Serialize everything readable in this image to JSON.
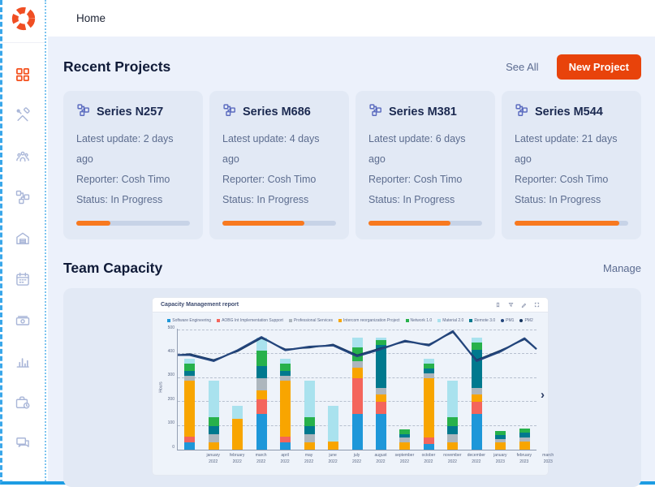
{
  "colors": {
    "accent": "#e8430b",
    "progress_fill": "#f8791f",
    "frame_blue": "#1d9ce3",
    "sidebar_inactive": "#a9b6d8",
    "sidebar_active": "#f4511e"
  },
  "topbar": {
    "title": "Home"
  },
  "sidebar": {
    "items": [
      {
        "name": "dashboard",
        "active": true
      },
      {
        "name": "tools",
        "active": false
      },
      {
        "name": "team",
        "active": false
      },
      {
        "name": "projects",
        "active": false
      },
      {
        "name": "home",
        "active": false
      },
      {
        "name": "calendar",
        "active": false
      },
      {
        "name": "payments",
        "active": false
      },
      {
        "name": "reports",
        "active": false
      },
      {
        "name": "portfolio",
        "active": false
      },
      {
        "name": "messages",
        "active": false
      }
    ]
  },
  "recent_projects": {
    "heading": "Recent Projects",
    "see_all_label": "See All",
    "new_project_label": "New Project",
    "cards": [
      {
        "title": "Series N257",
        "latest_update": "Latest update: 2 days ago",
        "reporter": "Reporter: Cosh Timo",
        "status": "Status: In Progress",
        "progress_pct": 30
      },
      {
        "title": "Series M686",
        "latest_update": "Latest update: 4 days ago",
        "reporter": "Reporter: Cosh Timo",
        "status": "Status: In Progress",
        "progress_pct": 72
      },
      {
        "title": "Series M381",
        "latest_update": "Latest update: 6 days ago",
        "reporter": "Reporter: Cosh Timo",
        "status": "Status: In Progress",
        "progress_pct": 72
      },
      {
        "title": "Series M544",
        "latest_update": "Latest update: 21 days ago",
        "reporter": "Reporter: Cosh Timo",
        "status": "Status: In Progress",
        "progress_pct": 92
      }
    ]
  },
  "team_capacity": {
    "heading": "Team Capacity",
    "manage_label": "Manage",
    "next_arrow": "›"
  },
  "chart_data": {
    "type": "bar",
    "stacked": true,
    "overlay": "line",
    "title": "Capacity Management report",
    "ylabel": "Hours",
    "ylim": [
      0,
      500
    ],
    "yticks": [
      0,
      100,
      200,
      300,
      400,
      500
    ],
    "grid": true,
    "legend_position": "top",
    "toolbar_icons": [
      "bookmark",
      "filter",
      "edit",
      "expand"
    ],
    "categories": [
      "january 2022",
      "february 2022",
      "march 2022",
      "april 2022",
      "may 2022",
      "june 2022",
      "july 2022",
      "august 2022",
      "september 2022",
      "october 2022",
      "november 2022",
      "december 2022",
      "january 2023",
      "february 2023",
      "march 2023"
    ],
    "series": [
      {
        "name": "Software Engineering",
        "color": "#1e97d9",
        "values": [
          30,
          0,
          0,
          150,
          30,
          0,
          0,
          150,
          150,
          0,
          25,
          0,
          150,
          0,
          0
        ]
      },
      {
        "name": "AOBG Int Implementation Support",
        "color": "#f4655c",
        "values": [
          25,
          0,
          0,
          60,
          25,
          0,
          0,
          150,
          50,
          0,
          25,
          0,
          50,
          0,
          0
        ]
      },
      {
        "name": "Intercom reorganization Project",
        "color": "#f8a500",
        "values": [
          235,
          30,
          130,
          40,
          235,
          30,
          35,
          45,
          30,
          30,
          250,
          30,
          30,
          30,
          35
        ]
      },
      {
        "name": "Professional Services",
        "color": "#adb6bd",
        "values": [
          20,
          35,
          0,
          50,
          20,
          35,
          0,
          25,
          30,
          20,
          20,
          35,
          30,
          15,
          15
        ]
      },
      {
        "name": "Remote 3.0",
        "color": "#00798e",
        "values": [
          20,
          35,
          0,
          50,
          20,
          35,
          0,
          0,
          180,
          15,
          20,
          35,
          160,
          15,
          20
        ]
      },
      {
        "name": "Network 1.0",
        "color": "#27b14b",
        "values": [
          30,
          35,
          0,
          65,
          30,
          35,
          0,
          60,
          20,
          20,
          20,
          35,
          30,
          20,
          20
        ]
      },
      {
        "name": "Material 2.0",
        "color": "#a9e2ee",
        "values": [
          20,
          155,
          55,
          55,
          20,
          155,
          150,
          40,
          10,
          0,
          20,
          155,
          20,
          0,
          0
        ]
      }
    ],
    "line_series": [
      {
        "name": "PM2",
        "color": "#16355f",
        "values": [
          405,
          380,
          415,
          470,
          425,
          430,
          445,
          400,
          430,
          455,
          445,
          495,
          380,
          420,
          465
        ]
      },
      {
        "name": "PM1",
        "color": "#23457c",
        "values": [
          400,
          375,
          420,
          475,
          420,
          435,
          440,
          395,
          425,
          460,
          440,
          500,
          375,
          415,
          470
        ]
      }
    ],
    "line_edges": {
      "start": 400,
      "end": 425
    },
    "legend": [
      {
        "label": "Software Engineering",
        "color": "#1e97d9",
        "shape": "square"
      },
      {
        "label": "AOBG Int Implementation Support",
        "color": "#f4655c",
        "shape": "square"
      },
      {
        "label": "Professional Services",
        "color": "#adb6bd",
        "shape": "square"
      },
      {
        "label": "Intercom reorganization Project",
        "color": "#f8a500",
        "shape": "square"
      },
      {
        "label": "Network 1.0",
        "color": "#27b14b",
        "shape": "square"
      },
      {
        "label": "Material 2.0",
        "color": "#a9e2ee",
        "shape": "square"
      },
      {
        "label": "Remote 3.0",
        "color": "#00798e",
        "shape": "square"
      },
      {
        "label": "PM1",
        "color": "#23457c",
        "shape": "circle"
      },
      {
        "label": "PM2",
        "color": "#16355f",
        "shape": "circle"
      }
    ]
  }
}
